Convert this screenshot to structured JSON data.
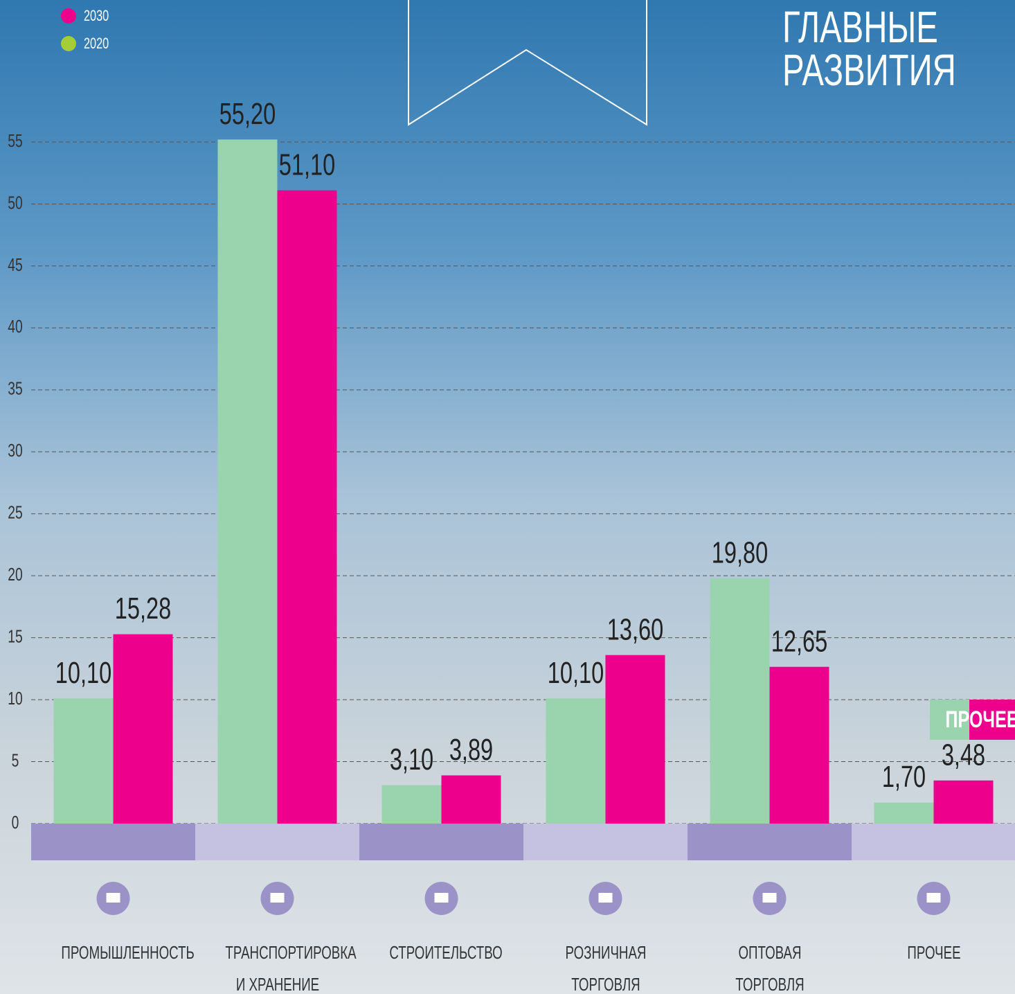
{
  "chart_data": {
    "type": "bar",
    "title": [
      "ГЛАВНЫЕ",
      "РАЗВИТИЯ"
    ],
    "badge": "ПРОЧЕЕ",
    "categories": [
      "ПРОМЫШЛЕННОСТЬ",
      "ТРАНСПОРТИРОВКА И ХРАНЕНИЕ",
      "СТРОИТЕЛЬСТВО",
      "РОЗНИЧНАЯ ТОРГОВЛЯ",
      "ОПТОВАЯ ТОРГОВЛЯ",
      "ПРОЧЕЕ"
    ],
    "series": [
      {
        "name": "2030",
        "color": "#ec008c",
        "values": [
          15.28,
          51.1,
          3.89,
          13.6,
          12.65,
          3.48
        ],
        "value_labels": [
          "15,28",
          "51,10",
          "3,89",
          "13,60",
          "12,65",
          "3,48"
        ]
      },
      {
        "name": "2020",
        "color": "#9ad4ae",
        "legend_color": "#a5cd39",
        "values": [
          10.1,
          55.2,
          3.1,
          10.1,
          19.8,
          1.7
        ],
        "value_labels": [
          "10,10",
          "55,20",
          "3,10",
          "10,10",
          "19,80",
          "1,70"
        ]
      }
    ],
    "ylim": [
      0,
      55
    ],
    "yticks": [
      0,
      5,
      10,
      15,
      20,
      25,
      30,
      35,
      40,
      45,
      50,
      55
    ],
    "grid": true
  }
}
